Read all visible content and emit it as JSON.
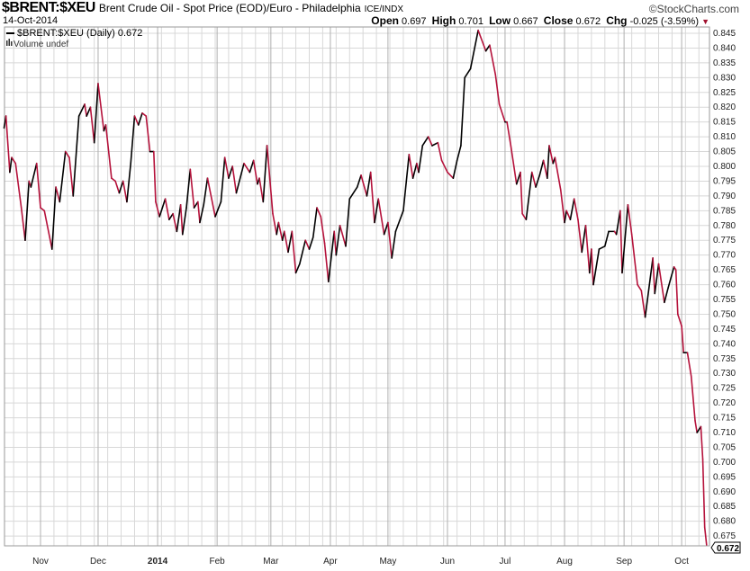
{
  "header": {
    "symbol": "$BRENT:$XEU",
    "description": "Brent Crude Oil - Spot Price (EOD)/Euro - Philadelphia",
    "exchange": "ICE/INDX",
    "brand": "©StockCharts.com",
    "date": "14-Oct-2014",
    "open_label": "Open",
    "open": "0.697",
    "high_label": "High",
    "high": "0.701",
    "low_label": "Low",
    "low": "0.667",
    "close_label": "Close",
    "close": "0.672",
    "chg_label": "Chg",
    "chg": "-0.025 (-3.59%)",
    "chg_arrow": "▼"
  },
  "legend": {
    "series": "$BRENT:$XEU (Daily) 0.672",
    "volume": "Volume undef"
  },
  "colors": {
    "up": "#000000",
    "down": "#b5123b",
    "grid": "#d8d8d8",
    "month_grid": "#b0b0b0"
  },
  "chart_data": {
    "type": "line",
    "title": "$BRENT:$XEU",
    "ylim": [
      0.672,
      0.846
    ],
    "y_ticks": [
      "0.675",
      "0.680",
      "0.685",
      "0.690",
      "0.695",
      "0.700",
      "0.705",
      "0.710",
      "0.715",
      "0.720",
      "0.725",
      "0.730",
      "0.735",
      "0.740",
      "0.745",
      "0.750",
      "0.755",
      "0.760",
      "0.765",
      "0.770",
      "0.775",
      "0.780",
      "0.785",
      "0.790",
      "0.795",
      "0.800",
      "0.805",
      "0.810",
      "0.815",
      "0.820",
      "0.825",
      "0.830",
      "0.835",
      "0.840",
      "0.845"
    ],
    "y_axis_side": "right",
    "last_value_label": "0.672",
    "x_ticks": [
      {
        "date": "2013-11-01",
        "label": "Nov"
      },
      {
        "date": "2013-12-01",
        "label": "Dec"
      },
      {
        "date": "2014-01-01",
        "label": "2014"
      },
      {
        "date": "2014-02-01",
        "label": "Feb"
      },
      {
        "date": "2014-03-01",
        "label": "Mar"
      },
      {
        "date": "2014-04-01",
        "label": "Apr"
      },
      {
        "date": "2014-05-01",
        "label": "May"
      },
      {
        "date": "2014-06-01",
        "label": "Jun"
      },
      {
        "date": "2014-07-01",
        "label": "Jul"
      },
      {
        "date": "2014-08-01",
        "label": "Aug"
      },
      {
        "date": "2014-09-01",
        "label": "Sep"
      },
      {
        "date": "2014-10-01",
        "label": "Oct"
      }
    ],
    "grid": true,
    "line_coloring": "black when rising, red when falling",
    "series": [
      {
        "name": "$BRENT:$XEU (Daily)",
        "points": [
          [
            "2013-10-13",
            0.813
          ],
          [
            "2013-10-14",
            0.817
          ],
          [
            "2013-10-16",
            0.798
          ],
          [
            "2013-10-17",
            0.803
          ],
          [
            "2013-10-19",
            0.801
          ],
          [
            "2013-10-22",
            0.786
          ],
          [
            "2013-10-24",
            0.775
          ],
          [
            "2013-10-26",
            0.795
          ],
          [
            "2013-10-27",
            0.793
          ],
          [
            "2013-10-30",
            0.801
          ],
          [
            "2013-11-01",
            0.786
          ],
          [
            "2013-11-03",
            0.785
          ],
          [
            "2013-11-07",
            0.772
          ],
          [
            "2013-11-09",
            0.793
          ],
          [
            "2013-11-11",
            0.788
          ],
          [
            "2013-11-14",
            0.805
          ],
          [
            "2013-11-16",
            0.803
          ],
          [
            "2013-11-18",
            0.79
          ],
          [
            "2013-11-21",
            0.817
          ],
          [
            "2013-11-24",
            0.821
          ],
          [
            "2013-11-25",
            0.817
          ],
          [
            "2013-11-27",
            0.82
          ],
          [
            "2013-11-29",
            0.808
          ],
          [
            "2013-12-01",
            0.828
          ],
          [
            "2013-12-04",
            0.812
          ],
          [
            "2013-12-05",
            0.814
          ],
          [
            "2013-12-08",
            0.796
          ],
          [
            "2013-12-10",
            0.795
          ],
          [
            "2013-12-12",
            0.791
          ],
          [
            "2013-12-14",
            0.795
          ],
          [
            "2013-12-16",
            0.788
          ],
          [
            "2013-12-18",
            0.801
          ],
          [
            "2013-12-20",
            0.817
          ],
          [
            "2013-12-22",
            0.814
          ],
          [
            "2013-12-24",
            0.818
          ],
          [
            "2013-12-26",
            0.817
          ],
          [
            "2013-12-28",
            0.805
          ],
          [
            "2013-12-30",
            0.805
          ],
          [
            "2013-12-31",
            0.788
          ],
          [
            "2014-01-02",
            0.783
          ],
          [
            "2014-01-05",
            0.789
          ],
          [
            "2014-01-07",
            0.782
          ],
          [
            "2014-01-09",
            0.784
          ],
          [
            "2014-01-11",
            0.778
          ],
          [
            "2014-01-13",
            0.787
          ],
          [
            "2014-01-14",
            0.777
          ],
          [
            "2014-01-16",
            0.786
          ],
          [
            "2014-01-18",
            0.799
          ],
          [
            "2014-01-20",
            0.786
          ],
          [
            "2014-01-22",
            0.788
          ],
          [
            "2014-01-23",
            0.781
          ],
          [
            "2014-01-25",
            0.787
          ],
          [
            "2014-01-27",
            0.796
          ],
          [
            "2014-01-31",
            0.783
          ],
          [
            "2014-02-03",
            0.788
          ],
          [
            "2014-02-05",
            0.803
          ],
          [
            "2014-02-07",
            0.796
          ],
          [
            "2014-02-09",
            0.8
          ],
          [
            "2014-02-11",
            0.791
          ],
          [
            "2014-02-15",
            0.801
          ],
          [
            "2014-02-18",
            0.798
          ],
          [
            "2014-02-20",
            0.802
          ],
          [
            "2014-02-22",
            0.794
          ],
          [
            "2014-02-23",
            0.796
          ],
          [
            "2014-02-25",
            0.788
          ],
          [
            "2014-02-27",
            0.807
          ],
          [
            "2014-03-02",
            0.784
          ],
          [
            "2014-03-04",
            0.777
          ],
          [
            "2014-03-05",
            0.781
          ],
          [
            "2014-03-07",
            0.775
          ],
          [
            "2014-03-08",
            0.778
          ],
          [
            "2014-03-10",
            0.771
          ],
          [
            "2014-03-12",
            0.778
          ],
          [
            "2014-03-14",
            0.764
          ],
          [
            "2014-03-16",
            0.767
          ],
          [
            "2014-03-19",
            0.775
          ],
          [
            "2014-03-21",
            0.772
          ],
          [
            "2014-03-23",
            0.776
          ],
          [
            "2014-03-25",
            0.786
          ],
          [
            "2014-03-27",
            0.783
          ],
          [
            "2014-03-29",
            0.774
          ],
          [
            "2014-03-31",
            0.761
          ],
          [
            "2014-04-03",
            0.778
          ],
          [
            "2014-04-04",
            0.77
          ],
          [
            "2014-04-06",
            0.78
          ],
          [
            "2014-04-09",
            0.773
          ],
          [
            "2014-04-11",
            0.789
          ],
          [
            "2014-04-15",
            0.793
          ],
          [
            "2014-04-17",
            0.797
          ],
          [
            "2014-04-20",
            0.79
          ],
          [
            "2014-04-22",
            0.798
          ],
          [
            "2014-04-24",
            0.781
          ],
          [
            "2014-04-26",
            0.789
          ],
          [
            "2014-04-29",
            0.777
          ],
          [
            "2014-05-01",
            0.781
          ],
          [
            "2014-05-03",
            0.769
          ],
          [
            "2014-05-05",
            0.778
          ],
          [
            "2014-05-09",
            0.785
          ],
          [
            "2014-05-12",
            0.804
          ],
          [
            "2014-05-14",
            0.796
          ],
          [
            "2014-05-16",
            0.801
          ],
          [
            "2014-05-17",
            0.798
          ],
          [
            "2014-05-19",
            0.807
          ],
          [
            "2014-05-22",
            0.81
          ],
          [
            "2014-05-24",
            0.807
          ],
          [
            "2014-05-27",
            0.808
          ],
          [
            "2014-05-29",
            0.802
          ],
          [
            "2014-06-01",
            0.798
          ],
          [
            "2014-06-04",
            0.796
          ],
          [
            "2014-06-06",
            0.802
          ],
          [
            "2014-06-08",
            0.807
          ],
          [
            "2014-06-10",
            0.83
          ],
          [
            "2014-06-13",
            0.833
          ],
          [
            "2014-06-17",
            0.846
          ],
          [
            "2014-06-21",
            0.839
          ],
          [
            "2014-06-23",
            0.841
          ],
          [
            "2014-06-26",
            0.831
          ],
          [
            "2014-06-28",
            0.821
          ],
          [
            "2014-07-01",
            0.815
          ],
          [
            "2014-07-02",
            0.815
          ],
          [
            "2014-07-04",
            0.807
          ],
          [
            "2014-07-07",
            0.794
          ],
          [
            "2014-07-09",
            0.798
          ],
          [
            "2014-07-10",
            0.784
          ],
          [
            "2014-07-12",
            0.782
          ],
          [
            "2014-07-15",
            0.798
          ],
          [
            "2014-07-17",
            0.793
          ],
          [
            "2014-07-19",
            0.797
          ],
          [
            "2014-07-21",
            0.802
          ],
          [
            "2014-07-23",
            0.796
          ],
          [
            "2014-07-24",
            0.807
          ],
          [
            "2014-07-26",
            0.801
          ],
          [
            "2014-07-27",
            0.803
          ],
          [
            "2014-07-30",
            0.792
          ],
          [
            "2014-08-01",
            0.781
          ],
          [
            "2014-08-02",
            0.785
          ],
          [
            "2014-08-04",
            0.782
          ],
          [
            "2014-08-06",
            0.789
          ],
          [
            "2014-08-08",
            0.782
          ],
          [
            "2014-08-10",
            0.771
          ],
          [
            "2014-08-12",
            0.78
          ],
          [
            "2014-08-14",
            0.764
          ],
          [
            "2014-08-15",
            0.772
          ],
          [
            "2014-08-16",
            0.76
          ],
          [
            "2014-08-19",
            0.772
          ],
          [
            "2014-08-22",
            0.773
          ],
          [
            "2014-08-24",
            0.778
          ],
          [
            "2014-08-27",
            0.778
          ],
          [
            "2014-08-28",
            0.777
          ],
          [
            "2014-08-30",
            0.785
          ],
          [
            "2014-08-31",
            0.764
          ],
          [
            "2014-09-03",
            0.787
          ],
          [
            "2014-09-05",
            0.777
          ],
          [
            "2014-09-08",
            0.76
          ],
          [
            "2014-09-10",
            0.758
          ],
          [
            "2014-09-12",
            0.749
          ],
          [
            "2014-09-16",
            0.769
          ],
          [
            "2014-09-17",
            0.757
          ],
          [
            "2014-09-19",
            0.767
          ],
          [
            "2014-09-22",
            0.754
          ],
          [
            "2014-09-24",
            0.759
          ],
          [
            "2014-09-27",
            0.766
          ],
          [
            "2014-09-28",
            0.765
          ],
          [
            "2014-09-29",
            0.75
          ],
          [
            "2014-10-01",
            0.746
          ],
          [
            "2014-10-02",
            0.737
          ],
          [
            "2014-10-04",
            0.737
          ],
          [
            "2014-10-06",
            0.729
          ],
          [
            "2014-10-08",
            0.714
          ],
          [
            "2014-10-09",
            0.71
          ],
          [
            "2014-10-11",
            0.712
          ],
          [
            "2014-10-12",
            0.701
          ],
          [
            "2014-10-13",
            0.678
          ],
          [
            "2014-10-14",
            0.672
          ]
        ]
      }
    ]
  }
}
